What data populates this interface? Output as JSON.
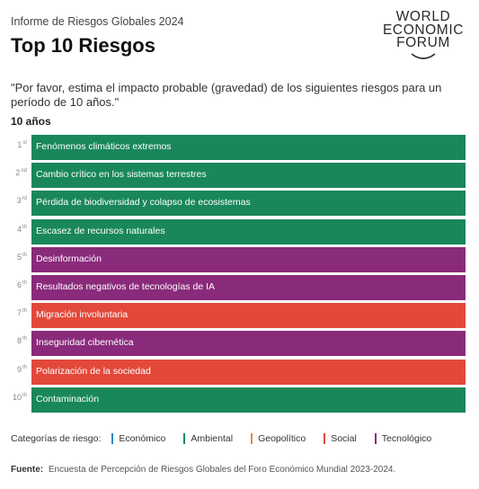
{
  "header": {
    "report_label": "Informe de Riesgos Globales 2024",
    "title": "Top 10 Riesgos"
  },
  "logo": {
    "line1": "WORLD",
    "line2": "ECONOMIC",
    "line3": "FORUM"
  },
  "question": "\"Por favor, estima el impacto probable (gravedad) de los siguientes riesgos para un período de 10 años.\"",
  "horizon": "10 años",
  "colors": {
    "Económico": "#2e86c9",
    "Ambiental": "#19875a",
    "Geopolítico": "#e8874a",
    "Social": "#e3493b",
    "Tecnológico": "#8a2a7b"
  },
  "chart_data": {
    "type": "table",
    "title": "Top 10 Riesgos",
    "subtitle": "10 años",
    "rows": [
      {
        "rank": 1,
        "suffix": "st",
        "label": "Fenómenos climáticos extremos",
        "category": "Ambiental"
      },
      {
        "rank": 2,
        "suffix": "nd",
        "label": "Cambio crítico en los sistemas terrestres",
        "category": "Ambiental"
      },
      {
        "rank": 3,
        "suffix": "rd",
        "label": "Pérdida de biodiversidad y colapso de ecosistemas",
        "category": "Ambiental"
      },
      {
        "rank": 4,
        "suffix": "th",
        "label": "Escasez de recursos naturales",
        "category": "Ambiental"
      },
      {
        "rank": 5,
        "suffix": "th",
        "label": "Desinformación",
        "category": "Tecnológico"
      },
      {
        "rank": 6,
        "suffix": "th",
        "label": "Resultados negativos de tecnologías de IA",
        "category": "Tecnológico"
      },
      {
        "rank": 7,
        "suffix": "th",
        "label": "Migración involuntaria",
        "category": "Social"
      },
      {
        "rank": 8,
        "suffix": "th",
        "label": "Inseguridad cibernética",
        "category": "Tecnológico"
      },
      {
        "rank": 9,
        "suffix": "th",
        "label": "Polarización de la sociedad",
        "category": "Social"
      },
      {
        "rank": 10,
        "suffix": "th",
        "label": "Contaminación",
        "category": "Ambiental"
      }
    ]
  },
  "legend": {
    "title": "Categorías de riesgo:",
    "items": [
      "Económico",
      "Ambiental",
      "Geopolítico",
      "Social",
      "Tecnológico"
    ]
  },
  "source": {
    "label": "Fuente:",
    "text": "Encuesta de Percepción de Riesgos Globales del Foro Económico Mundial 2023-2024."
  }
}
